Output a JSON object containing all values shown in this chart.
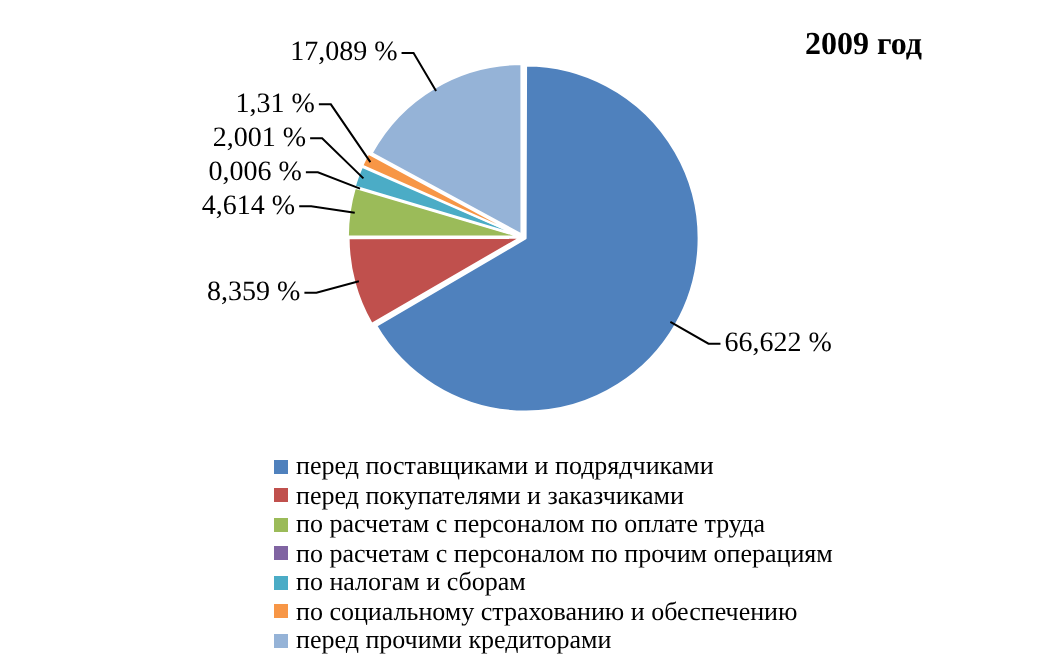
{
  "chart_data": {
    "type": "pie",
    "title": "2009 год",
    "categories": [
      "перед поставщиками и подрядчиками",
      "перед покупателями и заказчиками",
      "по расчетам с персоналом по оплате труда",
      "по расчетам с персоналом по прочим операциям",
      "по налогам и сборам",
      "по социальному страхованию и обеспечению",
      "перед прочими кредиторами"
    ],
    "values": [
      66.622,
      8.359,
      4.614,
      0.006,
      2.001,
      1.31,
      17.089
    ],
    "value_labels": [
      "66,622 %",
      "8,359 %",
      "4,614 %",
      "0,006 %",
      "2,001 %",
      "1,31 %",
      "17,089 %"
    ],
    "colors": [
      "#4f81bd",
      "#c0504d",
      "#9bbb59",
      "#8064a2",
      "#4bacc6",
      "#f79646",
      "#95b3d7"
    ],
    "legend": "bottom"
  }
}
